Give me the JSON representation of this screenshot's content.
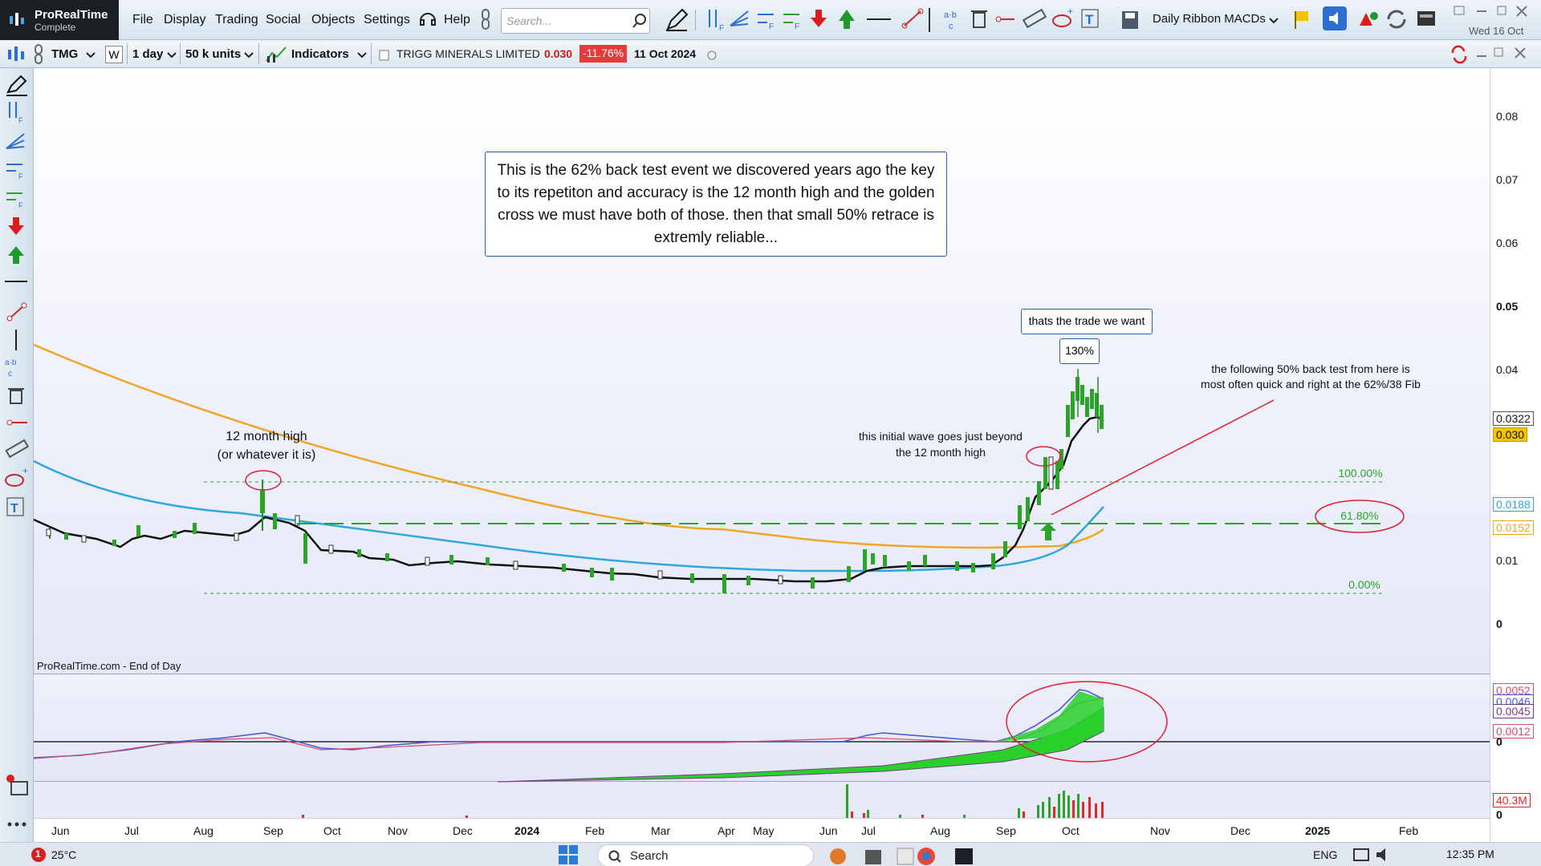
{
  "app": {
    "brand": "ProRealTime",
    "edition": "Complete"
  },
  "menu": [
    "File",
    "Display",
    "Trading",
    "Social",
    "Objects",
    "Settings",
    "Help"
  ],
  "search": {
    "placeholder": "Search..."
  },
  "ribbon_label": "Daily Ribbon MACDs",
  "date_display": "Wed 16 Oct",
  "chart_header": {
    "ticker": "TMG",
    "period_short": "W",
    "timeframe": "1 day",
    "units": "50 k units",
    "indicators_label": "Indicators",
    "name": "TRIGG MINERALS LIMITED",
    "price": "0.030",
    "change": "-11.76%",
    "date": "11 Oct 2024"
  },
  "annotations": {
    "main_box": "This is the 62% back test event we discovered years ago the key to its repetiton and accuracy is the 12 month high and the golden cross we must have both of those. then that small 50% retrace is extremly reliable...",
    "trade_box": "thats the trade we want",
    "pct_box": "130%",
    "month_high_1": "12 month high",
    "month_high_2": "(or whatever it is)",
    "wave_1": "this initial wave goes just beyond",
    "wave_2": "the 12 month high",
    "backtest_1": "the following 50% back test from here is",
    "backtest_2": "most often quick and right at the 62%/38 Fib",
    "footer": "ProRealTime.com - End of Day"
  },
  "fib": {
    "f100": "100.00%",
    "f618": "61.80%",
    "f0": "0.00%"
  },
  "y_axis": [
    "0.08",
    "0.07",
    "0.06",
    "0.05",
    "0.04",
    "0.01",
    "0"
  ],
  "price_tags": {
    "ema": "0.0322",
    "last": "0.030",
    "sma_blue": "0.0188",
    "sma_orange": "0.0152"
  },
  "macd_tags": {
    "a": "0.0052",
    "b": "0.0046",
    "c": "0.0045",
    "d": "0.0012",
    "zero": "0"
  },
  "volume_tag": {
    "value": "40.3M",
    "zero": "0"
  },
  "x_axis": [
    "Jun",
    "Jul",
    "Aug",
    "Sep",
    "Oct",
    "Nov",
    "Dec",
    "2024",
    "Feb",
    "Mar",
    "Apr",
    "May",
    "Jun",
    "Jul",
    "Aug",
    "Sep",
    "Oct",
    "Nov",
    "Dec",
    "2025",
    "Feb"
  ],
  "taskbar": {
    "weather": "25°C",
    "search": "Search",
    "lang": "ENG",
    "time": "12:35 PM",
    "badge": "1"
  },
  "colors": {
    "sma_orange": "#f0a526",
    "sma_blue": "#2fa6e0",
    "ema_black": "#111111",
    "annot_red": "#e02030",
    "fib_green": "#2aa52a",
    "neg": "#e63b3b"
  }
}
